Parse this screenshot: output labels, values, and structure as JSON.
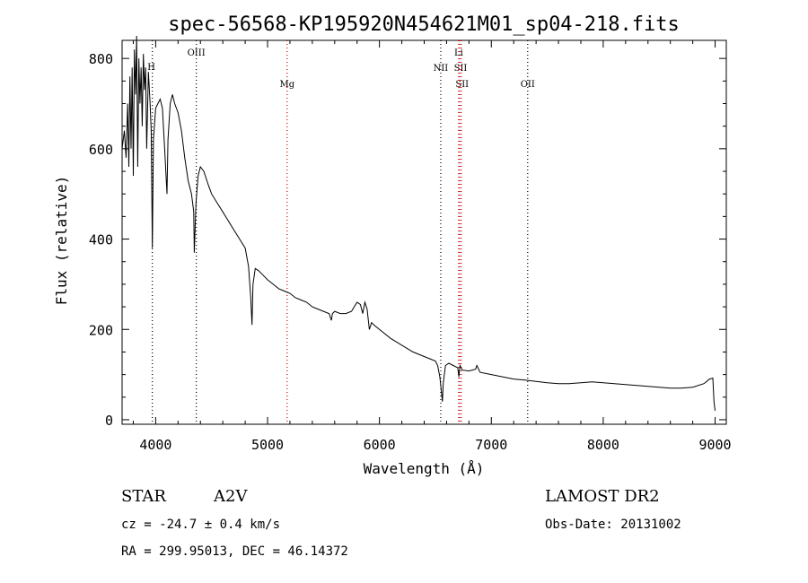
{
  "title": "spec-56568-KP195920N454621M01_sp04-218.fits",
  "info": {
    "object": "STAR",
    "subclass": "A2V",
    "survey": "LAMOST DR2",
    "cz": "cz = -24.7 ± 0.4 km/s",
    "obs_date": "Obs-Date: 20131002",
    "radec": "RA = 299.95013, DEC =  46.14372"
  },
  "chart_data": {
    "type": "line",
    "title": "spec-56568-KP195920N454621M01_sp04-218.fits",
    "xlabel": "Wavelength (Å)",
    "ylabel": "Flux (relative)",
    "xlim": [
      3700,
      9100
    ],
    "ylim": [
      -10,
      840
    ],
    "xticks": [
      4000,
      5000,
      6000,
      7000,
      8000,
      9000
    ],
    "yticks": [
      0,
      200,
      400,
      600,
      800
    ],
    "grid": false,
    "spectral_lines": [
      {
        "label": "H",
        "wavelength": 3970,
        "color": "#000000"
      },
      {
        "label": "OIII",
        "wavelength": 4363,
        "color": "#000000"
      },
      {
        "label": "Mg",
        "wavelength": 5175,
        "color": "#cc0000"
      },
      {
        "label": "NII",
        "wavelength": 6548,
        "color": "#000000"
      },
      {
        "label": "SII",
        "wavelength": 6717,
        "color": "#cc0000"
      },
      {
        "label": "SII",
        "wavelength": 6731,
        "color": "#cc0000"
      },
      {
        "label": "Li",
        "wavelength": 6708,
        "color": "#cc0000"
      },
      {
        "label": "OII",
        "wavelength": 7325,
        "color": "#000000"
      }
    ],
    "series": [
      {
        "x": [
          3700,
          3720,
          3735,
          3750,
          3760,
          3770,
          3780,
          3790,
          3800,
          3810,
          3820,
          3830,
          3840,
          3850,
          3860,
          3870,
          3880,
          3890,
          3900,
          3910,
          3920,
          3935,
          3950,
          3960,
          3970,
          3980,
          4000,
          4020,
          4040,
          4060,
          4080,
          4101,
          4110,
          4130,
          4150,
          4170,
          4200,
          4230,
          4260,
          4290,
          4320,
          4340,
          4345,
          4360,
          4380,
          4400,
          4430,
          4470,
          4500,
          4550,
          4600,
          4650,
          4700,
          4750,
          4800,
          4830,
          4850,
          4861,
          4870,
          4890,
          4920,
          4960,
          5000,
          5050,
          5100,
          5150,
          5200,
          5250,
          5300,
          5350,
          5400,
          5450,
          5500,
          5550,
          5570,
          5580,
          5600,
          5650,
          5700,
          5750,
          5800,
          5830,
          5850,
          5870,
          5890,
          5910,
          5930,
          5950,
          6000,
          6100,
          6200,
          6300,
          6400,
          6450,
          6500,
          6520,
          6540,
          6555,
          6563,
          6570,
          6590,
          6620,
          6660,
          6700,
          6710,
          6720,
          6740,
          6800,
          6860,
          6870,
          6900,
          7000,
          7100,
          7200,
          7300,
          7400,
          7500,
          7600,
          7700,
          7800,
          7900,
          8000,
          8100,
          8200,
          8300,
          8400,
          8500,
          8600,
          8700,
          8800,
          8900,
          8950,
          8980,
          8990,
          9000
        ],
        "y": [
          600,
          640,
          580,
          700,
          560,
          760,
          600,
          780,
          540,
          820,
          720,
          850,
          560,
          800,
          700,
          780,
          650,
          810,
          730,
          780,
          600,
          770,
          700,
          640,
          380,
          620,
          690,
          700,
          710,
          690,
          600,
          500,
          620,
          700,
          720,
          700,
          680,
          640,
          580,
          530,
          500,
          460,
          370,
          480,
          540,
          560,
          550,
          520,
          500,
          480,
          460,
          440,
          420,
          400,
          380,
          340,
          270,
          210,
          300,
          335,
          330,
          320,
          310,
          300,
          290,
          285,
          280,
          270,
          265,
          260,
          250,
          245,
          240,
          235,
          220,
          235,
          240,
          235,
          235,
          240,
          260,
          255,
          235,
          260,
          245,
          200,
          215,
          210,
          200,
          180,
          165,
          150,
          140,
          135,
          130,
          120,
          95,
          60,
          40,
          80,
          120,
          125,
          120,
          115,
          95,
          120,
          110,
          108,
          112,
          120,
          105,
          100,
          95,
          90,
          88,
          85,
          82,
          80,
          80,
          82,
          84,
          82,
          80,
          78,
          76,
          74,
          72,
          70,
          70,
          72,
          80,
          90,
          92,
          40,
          20
        ]
      }
    ]
  }
}
